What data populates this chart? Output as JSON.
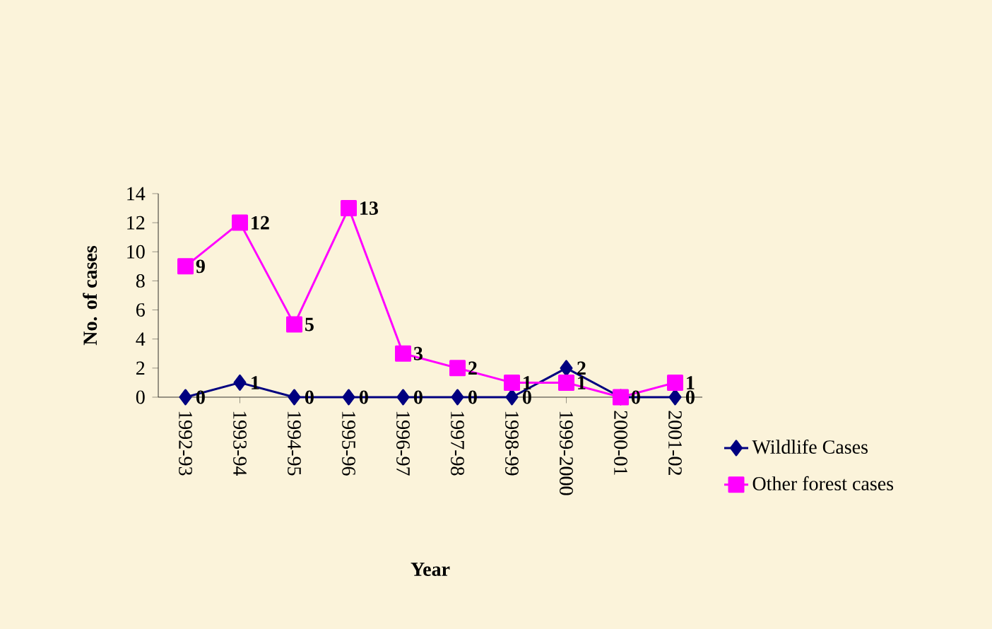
{
  "chart_data": {
    "type": "line",
    "xlabel": "Year",
    "ylabel": "No. of cases",
    "categories": [
      "1992-93",
      "1993-94",
      "1994-95",
      "1995-96",
      "1996-97",
      "1997-98",
      "1998-99",
      "1999-2000",
      "2000-01",
      "2001-02"
    ],
    "series": [
      {
        "name": "Wildlife Cases",
        "color": "#000080",
        "marker": "diamond",
        "values": [
          0,
          1,
          0,
          0,
          0,
          0,
          0,
          2,
          0,
          0
        ],
        "value_labels": [
          "0",
          "1",
          "0",
          "0",
          "0",
          "0",
          "0",
          "2",
          null,
          "0"
        ]
      },
      {
        "name": "Other forest cases",
        "color": "#ff00ff",
        "marker": "square",
        "values": [
          9,
          12,
          5,
          13,
          3,
          2,
          1,
          1,
          0,
          1
        ],
        "value_labels": [
          "9",
          "12",
          "5",
          "13",
          "3",
          "2",
          "1",
          "1",
          "0",
          "1"
        ]
      }
    ],
    "ylim": [
      0,
      14
    ],
    "yticks": [
      0,
      2,
      4,
      6,
      8,
      10,
      12,
      14
    ],
    "legend": "right",
    "grid": false
  }
}
